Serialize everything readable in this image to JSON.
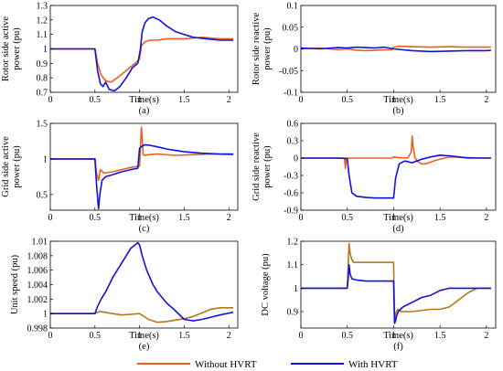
{
  "legend": [
    {
      "label": "Without HVRT",
      "color": "#e8601c"
    },
    {
      "label": "With HVRT",
      "color": "#1010e0"
    }
  ],
  "chart_data": [
    {
      "type": "line",
      "caption": "(a)",
      "xlabel": "Time(s)",
      "ylabel": [
        "Rotor side active",
        "power (pu)"
      ],
      "xlim": [
        0,
        2.1
      ],
      "ylim": [
        0.7,
        1.3
      ],
      "xticks": [
        "0",
        "0.5",
        "1",
        "1.5",
        "2"
      ],
      "yticks": [
        "0.7",
        "0.8",
        "0.9",
        "1",
        "1.1",
        "1.2",
        "1.3"
      ],
      "ytick_values": [
        0.7,
        0.8,
        0.9,
        1.0,
        1.1,
        1.2,
        1.3
      ],
      "grid": false,
      "series": [
        {
          "name": "Without HVRT",
          "color": "#e8601c",
          "x": [
            0,
            0.5,
            0.53,
            0.57,
            0.62,
            0.68,
            0.75,
            0.85,
            0.95,
            1.0,
            1.02,
            1.06,
            1.12,
            1.2,
            1.3,
            1.5,
            1.7,
            1.9,
            2.05
          ],
          "y": [
            1.0,
            1.0,
            0.9,
            0.82,
            0.78,
            0.77,
            0.8,
            0.85,
            0.9,
            0.93,
            1.02,
            1.05,
            1.06,
            1.06,
            1.07,
            1.07,
            1.08,
            1.07,
            1.07
          ]
        },
        {
          "name": "With HVRT",
          "color": "#1010e0",
          "x": [
            0,
            0.5,
            0.53,
            0.56,
            0.59,
            0.62,
            0.66,
            0.72,
            0.78,
            0.85,
            0.92,
            0.98,
            1.01,
            1.03,
            1.06,
            1.1,
            1.15,
            1.22,
            1.3,
            1.4,
            1.5,
            1.6,
            1.75,
            1.9,
            2.05
          ],
          "y": [
            1.0,
            1.0,
            0.85,
            0.76,
            0.74,
            0.77,
            0.72,
            0.71,
            0.74,
            0.8,
            0.87,
            0.9,
            1.0,
            1.12,
            1.18,
            1.21,
            1.22,
            1.2,
            1.16,
            1.12,
            1.1,
            1.08,
            1.07,
            1.06,
            1.06
          ]
        }
      ]
    },
    {
      "type": "line",
      "caption": "(b)",
      "xlabel": "Time(s)",
      "ylabel": [
        "Rotor side reactive",
        "power (pu)"
      ],
      "xlim": [
        0,
        2.1
      ],
      "ylim": [
        -0.1,
        0.1
      ],
      "xticks": [
        "0",
        "0.5",
        "1",
        "1.5",
        "2"
      ],
      "yticks": [
        "-0.1",
        "-0.05",
        "0",
        "0.05",
        "0.1"
      ],
      "ytick_values": [
        -0.1,
        -0.05,
        0.0,
        0.05,
        0.1
      ],
      "grid": false,
      "series": [
        {
          "name": "Without HVRT",
          "color": "#e8601c",
          "x": [
            0,
            0.2,
            0.4,
            0.5,
            0.6,
            0.7,
            0.8,
            0.9,
            0.98,
            1.0,
            1.05,
            1.2,
            1.4,
            1.6,
            1.8,
            2.0,
            2.05
          ],
          "y": [
            0.0,
            0.002,
            -0.002,
            0.0,
            -0.003,
            -0.004,
            -0.003,
            -0.002,
            -0.002,
            0.004,
            0.006,
            0.005,
            0.004,
            0.005,
            0.004,
            0.004,
            0.004
          ]
        },
        {
          "name": "With HVRT",
          "color": "#1010e0",
          "x": [
            0,
            0.2,
            0.4,
            0.5,
            0.6,
            0.7,
            0.8,
            0.9,
            1.0,
            1.1,
            1.2,
            1.4,
            1.6,
            1.8,
            2.0,
            2.05
          ],
          "y": [
            0.002,
            0.0,
            0.003,
            0.002,
            0.004,
            0.003,
            0.002,
            0.004,
            0.0,
            -0.002,
            -0.004,
            -0.006,
            -0.005,
            -0.004,
            -0.004,
            -0.003
          ]
        }
      ]
    },
    {
      "type": "line",
      "caption": "(c)",
      "xlabel": "Time(s)",
      "ylabel": [
        "Grid side active",
        "power (pu)"
      ],
      "xlim": [
        0,
        2.1
      ],
      "ylim": [
        0.28,
        1.5
      ],
      "xticks": [
        "0",
        "0.5",
        "1",
        "1.5",
        "2"
      ],
      "yticks": [
        "0.5",
        "1",
        "1.5"
      ],
      "ytick_values": [
        0.5,
        1.0,
        1.5
      ],
      "grid": false,
      "series": [
        {
          "name": "Without HVRT",
          "color": "#e8601c",
          "x": [
            0,
            0.5,
            0.52,
            0.54,
            0.56,
            0.6,
            0.7,
            0.8,
            0.9,
            1.0,
            1.02,
            1.03,
            1.04,
            1.06,
            1.1,
            1.2,
            1.4,
            1.6,
            1.8,
            2.05
          ],
          "y": [
            1.0,
            1.0,
            0.78,
            0.7,
            0.85,
            0.8,
            0.82,
            0.85,
            0.88,
            0.9,
            1.45,
            1.3,
            1.06,
            1.05,
            1.06,
            1.07,
            1.05,
            1.06,
            1.07,
            1.06
          ]
        },
        {
          "name": "With HVRT",
          "color": "#1010e0",
          "x": [
            0,
            0.5,
            0.52,
            0.54,
            0.555,
            0.58,
            0.62,
            0.7,
            0.8,
            0.9,
            0.98,
            1.0,
            1.03,
            1.06,
            1.12,
            1.2,
            1.3,
            1.4,
            1.5,
            1.7,
            1.9,
            2.05
          ],
          "y": [
            1.0,
            1.0,
            0.6,
            0.3,
            0.5,
            0.7,
            0.75,
            0.78,
            0.82,
            0.85,
            0.87,
            1.15,
            1.18,
            1.2,
            1.19,
            1.17,
            1.14,
            1.12,
            1.1,
            1.08,
            1.07,
            1.07
          ]
        }
      ]
    },
    {
      "type": "line",
      "caption": "(d)",
      "xlabel": "Time(s)",
      "ylabel": [
        "Grid side reactive",
        "power (pu)"
      ],
      "xlim": [
        0,
        2.1
      ],
      "ylim": [
        -0.9,
        0.6
      ],
      "xticks": [
        "0",
        "0.5",
        "1",
        "1.5",
        "2"
      ],
      "yticks": [
        "-0.9",
        "-0.6",
        "-0.3",
        "0",
        "0.3",
        "0.6"
      ],
      "ytick_values": [
        -0.9,
        -0.6,
        -0.3,
        0.0,
        0.3,
        0.6
      ],
      "grid": false,
      "series": [
        {
          "name": "Without HVRT",
          "color": "#e8601c",
          "x": [
            0,
            0.4,
            0.47,
            0.48,
            0.49,
            0.5,
            0.6,
            0.8,
            0.98,
            1.0,
            1.05,
            1.15,
            1.19,
            1.2,
            1.21,
            1.23,
            1.26,
            1.3,
            1.35,
            1.45,
            1.6,
            1.8,
            2.05
          ],
          "y": [
            0.0,
            0.0,
            0.0,
            -0.18,
            0.0,
            0.0,
            0.0,
            0.0,
            0.0,
            0.02,
            0.01,
            0.0,
            0.1,
            0.38,
            0.2,
            0.0,
            -0.06,
            -0.1,
            -0.1,
            -0.04,
            0.02,
            0.01,
            0.0
          ]
        },
        {
          "name": "With HVRT",
          "color": "#1010e0",
          "x": [
            0,
            0.4,
            0.5,
            0.52,
            0.55,
            0.6,
            0.7,
            0.8,
            0.9,
            1.0,
            1.02,
            1.06,
            1.12,
            1.2,
            1.3,
            1.4,
            1.5,
            1.6,
            1.7,
            1.8,
            2.05
          ],
          "y": [
            0.0,
            0.0,
            -0.01,
            -0.3,
            -0.6,
            -0.66,
            -0.68,
            -0.69,
            -0.69,
            -0.69,
            -0.35,
            -0.1,
            -0.05,
            -0.08,
            -0.02,
            0.02,
            0.05,
            0.04,
            0.02,
            0.0,
            0.0
          ]
        }
      ]
    },
    {
      "type": "line",
      "caption": "(e)",
      "xlabel": "Time(s)",
      "ylabel": [
        "Unit speed (pu)"
      ],
      "xlim": [
        0,
        2.1
      ],
      "ylim": [
        0.998,
        1.01
      ],
      "xticks": [
        "0",
        "0.5",
        "1",
        "1.5",
        "2"
      ],
      "yticks": [
        "0.998",
        "1",
        "1.002",
        "1.004",
        "1.006",
        "1.008",
        "1.01"
      ],
      "ytick_values": [
        0.998,
        1.0,
        1.002,
        1.004,
        1.006,
        1.008,
        1.01
      ],
      "grid": false,
      "series": [
        {
          "name": "Without HVRT",
          "color": "#b8741a",
          "x": [
            0,
            0.5,
            0.55,
            0.6,
            0.7,
            0.8,
            0.9,
            1.0,
            1.1,
            1.2,
            1.3,
            1.4,
            1.5,
            1.6,
            1.7,
            1.8,
            1.9,
            2.05
          ],
          "y": [
            1.0,
            1.0,
            1.0003,
            1.0002,
            1.0,
            0.9998,
            0.9999,
            1.0,
            0.9992,
            0.9988,
            0.9989,
            0.9991,
            0.9993,
            0.9996,
            1.0001,
            1.0006,
            1.0008,
            1.0008
          ]
        },
        {
          "name": "With HVRT",
          "color": "#1010e0",
          "x": [
            0,
            0.5,
            0.53,
            0.57,
            0.62,
            0.7,
            0.8,
            0.9,
            0.98,
            1.0,
            1.03,
            1.08,
            1.15,
            1.2,
            1.3,
            1.4,
            1.5,
            1.6,
            1.7,
            1.8,
            1.9,
            2.05
          ],
          "y": [
            1.0,
            1.0,
            1.001,
            1.002,
            1.003,
            1.005,
            1.007,
            1.009,
            1.0098,
            1.0095,
            1.008,
            1.006,
            1.004,
            1.003,
            1.0015,
            1.0004,
            0.9992,
            0.999,
            0.9992,
            0.9995,
            0.9998,
            1.0002
          ]
        }
      ]
    },
    {
      "type": "line",
      "caption": "(f)",
      "xlabel": "Time(s)",
      "ylabel": [
        "DC voltage (pu)"
      ],
      "xlim": [
        0,
        2.1
      ],
      "ylim": [
        0.83,
        1.2
      ],
      "xticks": [
        "0",
        "0.5",
        "1",
        "1.5",
        "2"
      ],
      "yticks": [
        "0.9",
        "1",
        "1.1",
        "1.2"
      ],
      "ytick_values": [
        0.9,
        1.0,
        1.1,
        1.2
      ],
      "grid": false,
      "series": [
        {
          "name": "Without HVRT",
          "color": "#b8741a",
          "x": [
            0,
            0.5,
            0.51,
            0.52,
            0.53,
            0.55,
            0.57,
            0.6,
            0.7,
            0.8,
            0.9,
            1.0,
            1.01,
            1.02,
            1.03,
            1.05,
            1.08,
            1.2,
            1.4,
            1.5,
            1.6,
            1.7,
            1.8,
            1.9,
            2.0,
            2.05
          ],
          "y": [
            1.0,
            1.0,
            1.1,
            1.19,
            1.15,
            1.12,
            1.11,
            1.11,
            1.11,
            1.11,
            1.11,
            1.11,
            0.86,
            0.89,
            0.9,
            0.91,
            0.9,
            0.9,
            0.91,
            0.91,
            0.92,
            0.95,
            0.98,
            1.0,
            1.0,
            1.0
          ]
        },
        {
          "name": "With HVRT",
          "color": "#1010e0",
          "x": [
            0,
            0.5,
            0.51,
            0.52,
            0.53,
            0.55,
            0.6,
            0.7,
            0.8,
            0.9,
            1.0,
            1.01,
            1.02,
            1.03,
            1.05,
            1.1,
            1.2,
            1.3,
            1.4,
            1.5,
            1.6,
            1.8,
            2.0,
            2.05
          ],
          "y": [
            1.0,
            1.0,
            1.04,
            1.1,
            1.06,
            1.04,
            1.035,
            1.03,
            1.03,
            1.03,
            1.03,
            0.85,
            0.86,
            0.88,
            0.9,
            0.92,
            0.94,
            0.96,
            0.97,
            0.99,
            1.0,
            1.0,
            1.0,
            1.0
          ]
        }
      ]
    }
  ]
}
